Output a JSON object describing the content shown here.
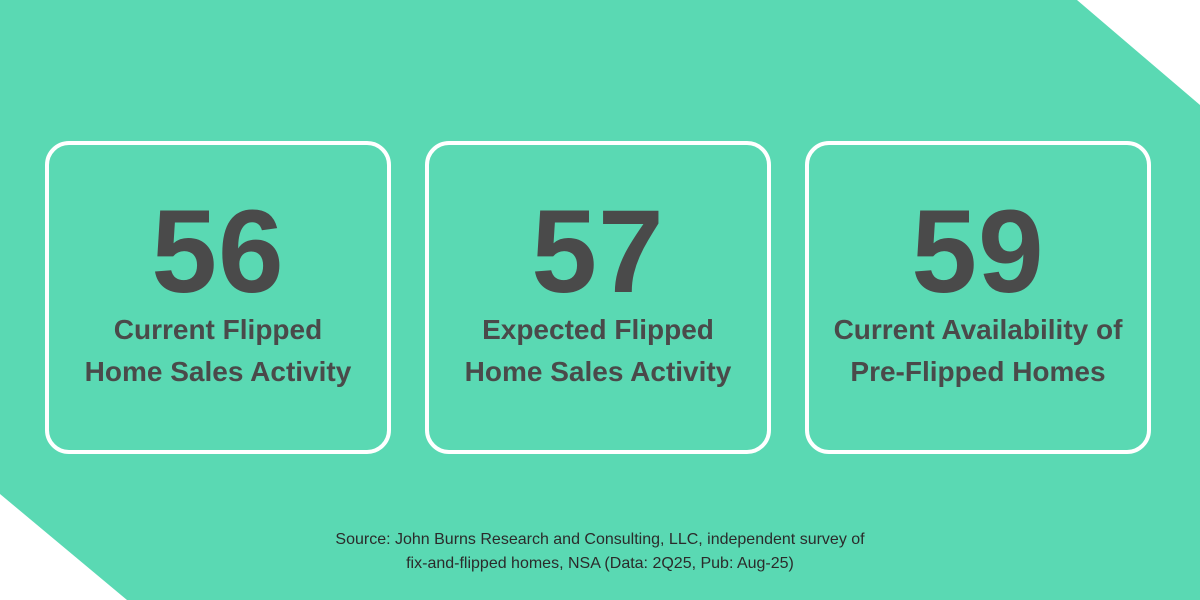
{
  "colors": {
    "background_accent": "#5ad9b3",
    "card_border": "#ffffff",
    "text_dark": "#4a4a4a"
  },
  "metrics": [
    {
      "value": "56",
      "label_line1": "Current Flipped",
      "label_line2": "Home Sales Activity"
    },
    {
      "value": "57",
      "label_line1": "Expected Flipped",
      "label_line2": "Home Sales Activity"
    },
    {
      "value": "59",
      "label_line1": "Current Availability of",
      "label_line2": "Pre-Flipped Homes"
    }
  ],
  "source": {
    "line1": "Source: John Burns Research and Consulting, LLC, independent survey of",
    "line2": "fix-and-flipped homes, NSA (Data: 2Q25, Pub: Aug-25)"
  }
}
